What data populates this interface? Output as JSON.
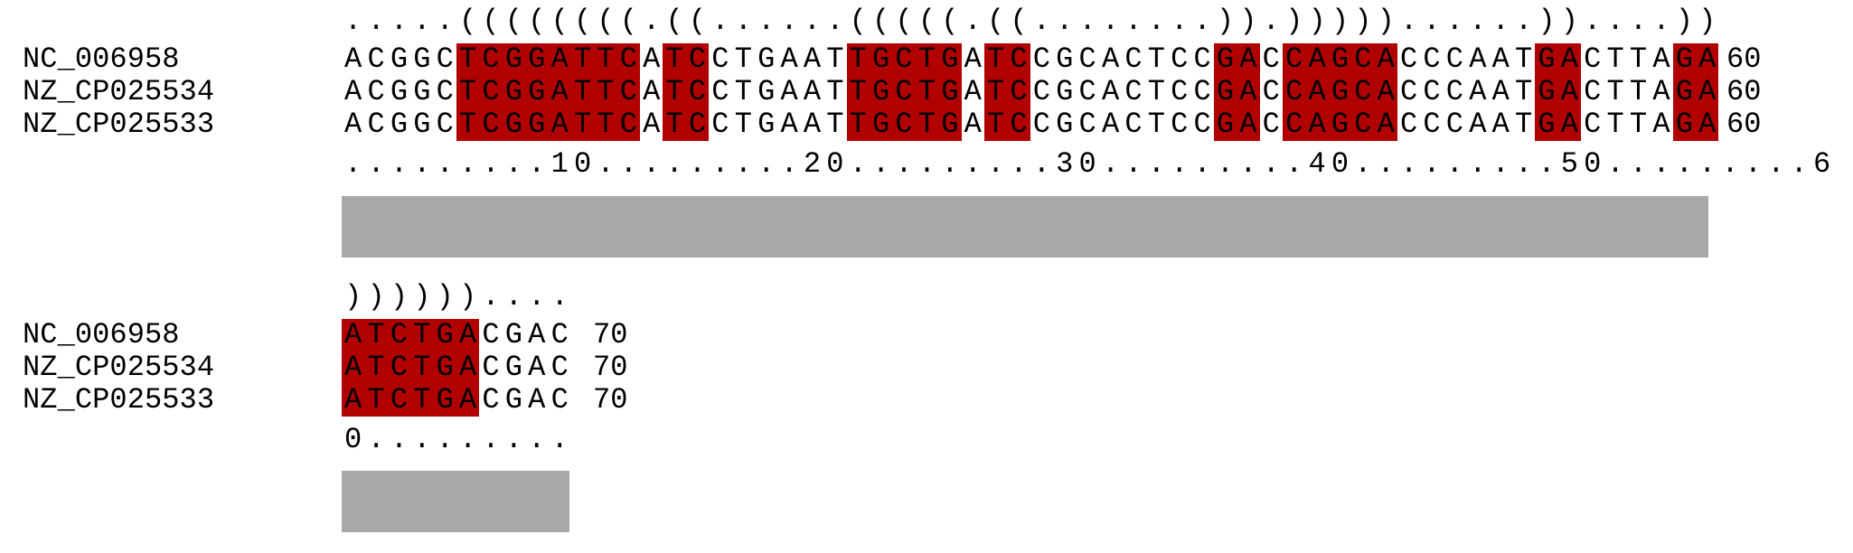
{
  "colors": {
    "highlight": "#b00000",
    "conservation_bar": "#a8a8a8"
  },
  "blocks": [
    {
      "structure": ".....((((((((.((......(((((.((........)).)))))......))....))",
      "rows": [
        {
          "name": "NC_006958",
          "seq": "ACGGCTCGGATTCATCCTGAATTGCTGATCCGCACTCCGACCAGCACCCAATGACTTAGA",
          "end": "60"
        },
        {
          "name": "NZ_CP025534",
          "seq": "ACGGCTCGGATTCATCCTGAATTGCTGATCCGCACTCCGACCAGCACCCAATGACTTAGA",
          "end": "60"
        },
        {
          "name": "NZ_CP025533",
          "seq": "ACGGCTCGGATTCATCCTGAATTGCTGATCCGCACTCCGACCAGCACCCAATGACTTAGA",
          "end": "60"
        }
      ],
      "ruler": ".........10.........20.........30.........40.........50.........6"
    },
    {
      "structure": "))))))....",
      "rows": [
        {
          "name": "NC_006958",
          "seq": "ATCTGACGAC",
          "end": "70"
        },
        {
          "name": "NZ_CP025534",
          "seq": "ATCTGACGAC",
          "end": "70"
        },
        {
          "name": "NZ_CP025533",
          "seq": "ATCTGACGAC",
          "end": "70"
        }
      ],
      "ruler": "0........."
    }
  ]
}
